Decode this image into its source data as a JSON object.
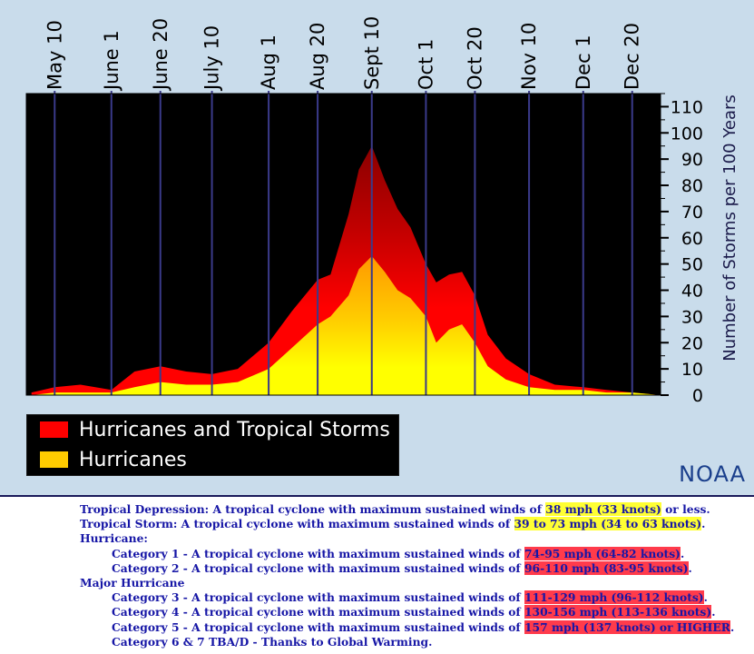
{
  "chart_data": {
    "type": "area",
    "title": "",
    "ylabel": "Number of Storms per 100 Years",
    "xlabel": "",
    "ylim": [
      0,
      115
    ],
    "y_ticks": [
      "0",
      "10",
      "20",
      "30",
      "40",
      "50",
      "60",
      "70",
      "80",
      "90",
      "100",
      "110"
    ],
    "x_ticks": [
      "May 10",
      "June 1",
      "June 20",
      "July 10",
      "Aug 1",
      "Aug 20",
      "Sept 10",
      "Oct 1",
      "Oct 20",
      "Nov 10",
      "Dec 1",
      "Dec 20"
    ],
    "x": [
      "May 1",
      "May 10",
      "May 20",
      "June 1",
      "June 10",
      "June 20",
      "June 30",
      "July 10",
      "July 20",
      "Aug 1",
      "Aug 10",
      "Aug 20",
      "Aug 25",
      "Sept 1",
      "Sept 5",
      "Sept 10",
      "Sept 15",
      "Sept 20",
      "Sept 25",
      "Oct 1",
      "Oct 5",
      "Oct 10",
      "Oct 15",
      "Oct 20",
      "Oct 25",
      "Nov 1",
      "Nov 10",
      "Nov 20",
      "Dec 1",
      "Dec 10",
      "Dec 20",
      "Dec 31"
    ],
    "series": [
      {
        "name": "Hurricanes and Tropical Storms",
        "color": "#ff0000",
        "values": [
          1,
          3,
          4,
          2,
          9,
          11,
          9,
          8,
          10,
          20,
          32,
          44,
          46,
          69,
          86,
          95,
          82,
          71,
          64,
          50,
          43,
          46,
          47,
          38,
          23,
          14,
          8,
          4,
          3,
          2,
          1,
          0
        ]
      },
      {
        "name": "Hurricanes",
        "color": "#ffcc00",
        "values": [
          0,
          1,
          1,
          1,
          3,
          5,
          4,
          4,
          5,
          10,
          18,
          27,
          30,
          38,
          48,
          53,
          47,
          40,
          37,
          30,
          20,
          25,
          27,
          20,
          11,
          6,
          3,
          2,
          2,
          1,
          1,
          0
        ]
      }
    ],
    "legend": "bottom-left",
    "grid": true
  },
  "source_credit": "NOAA",
  "definitions": {
    "td_prefix": "Tropical Depression: A tropical cyclone with maximum sustained winds of ",
    "td_value": "38 mph (33 knots)",
    "td_suffix": " or less.",
    "ts_prefix": "Tropical Storm: A tropical cyclone with maximum sustained winds of ",
    "ts_value": "39 to 73 mph (34 to 63 knots)",
    "ts_suffix": ".",
    "hurricane_heading": "Hurricane:",
    "cat1_prefix": "Category 1 - A tropical cyclone with maximum sustained winds of ",
    "cat1_value": "74-95 mph (64-82 knots)",
    "cat1_suffix": ".",
    "cat2_prefix": "Category 2 - A tropical cyclone with maximum sustained winds of ",
    "cat2_value": "96-110 mph (83-95 knots)",
    "cat2_suffix": ".",
    "major_heading": "Major Hurricane",
    "cat3_prefix": "Category 3 - A tropical cyclone with maximum sustained winds of ",
    "cat3_value": "111-129 mph (96-112 knots)",
    "cat3_suffix": ".",
    "cat4_prefix": "Category 4 - A tropical cyclone with maximum sustained winds of ",
    "cat4_value": "130-156 mph (113-136 knots)",
    "cat4_suffix": ".",
    "cat5_prefix": "Category 5 - A tropical cyclone with maximum sustained winds of ",
    "cat5_value": "157 mph (137 knots) or HIGHER",
    "cat5_suffix": ".",
    "cat67": "Category 6 & 7 TBA/D - Thanks to Global Warming."
  }
}
